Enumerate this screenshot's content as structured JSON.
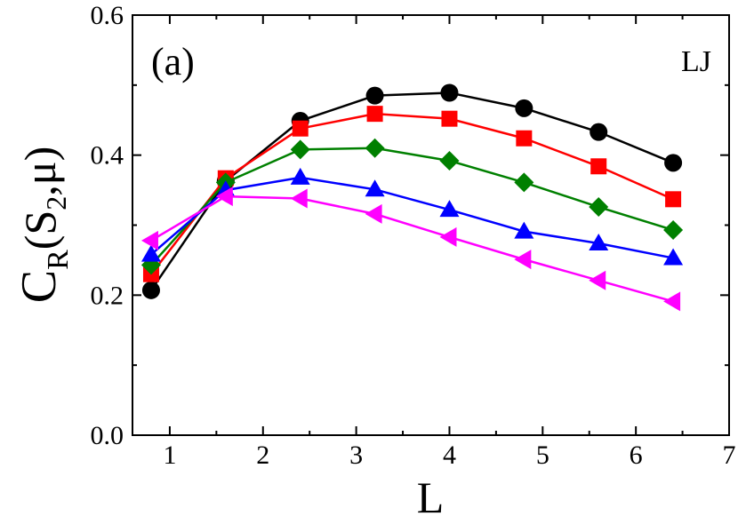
{
  "chart_data": {
    "type": "line",
    "panel_label": "(a)",
    "annotation": "LJ",
    "xlabel": "L",
    "ylabel": {
      "main": "C",
      "sub1": "R",
      "open": "(S",
      "sub2": "2",
      "close": ",μ)"
    },
    "xlim": [
      0.6,
      7
    ],
    "ylim": [
      0,
      0.6
    ],
    "xticks": [
      1,
      2,
      3,
      4,
      5,
      6,
      7
    ],
    "yticks": [
      0.0,
      0.2,
      0.4,
      0.6
    ],
    "xtick_labels": [
      "1",
      "2",
      "3",
      "4",
      "5",
      "6",
      "7"
    ],
    "ytick_labels": [
      "0.0",
      "0.2",
      "0.4",
      "0.6"
    ],
    "x": [
      0.8,
      1.6,
      2.4,
      3.2,
      4.0,
      4.8,
      5.6,
      6.4
    ],
    "series": [
      {
        "name": "black-circles",
        "color": "#000000",
        "marker": "circle",
        "values": [
          0.207,
          0.363,
          0.449,
          0.485,
          0.489,
          0.467,
          0.433,
          0.389
        ]
      },
      {
        "name": "red-squares",
        "color": "#ff0000",
        "marker": "square",
        "values": [
          0.23,
          0.367,
          0.438,
          0.459,
          0.452,
          0.424,
          0.384,
          0.337
        ]
      },
      {
        "name": "green-diamonds",
        "color": "#008000",
        "marker": "diamond",
        "values": [
          0.243,
          0.361,
          0.408,
          0.41,
          0.392,
          0.361,
          0.326,
          0.293
        ]
      },
      {
        "name": "blue-triangles-up",
        "color": "#0000ff",
        "marker": "triangle-up",
        "values": [
          0.258,
          0.35,
          0.368,
          0.351,
          0.322,
          0.291,
          0.274,
          0.253
        ]
      },
      {
        "name": "magenta-triangles-left",
        "color": "#ff00ff",
        "marker": "triangle-left",
        "values": [
          0.278,
          0.341,
          0.338,
          0.316,
          0.283,
          0.251,
          0.221,
          0.191
        ]
      }
    ]
  }
}
